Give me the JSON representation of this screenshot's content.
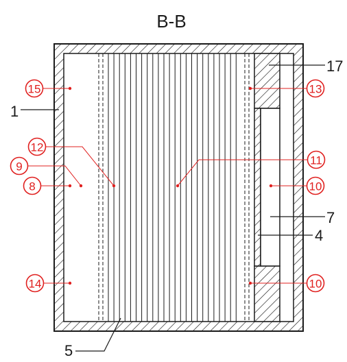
{
  "title": "B-B",
  "colors": {
    "line": "#1a1a1a",
    "red": "#e0201f",
    "background": "#ffffff"
  },
  "labels": {
    "l1": "1",
    "l4": "4",
    "l5": "5",
    "l7": "7",
    "l17": "17",
    "c8": "8",
    "c9": "9",
    "c10a": "10",
    "c10b": "10",
    "c11": "11",
    "c12": "12",
    "c13": "13",
    "c14": "14",
    "c15": "15"
  }
}
